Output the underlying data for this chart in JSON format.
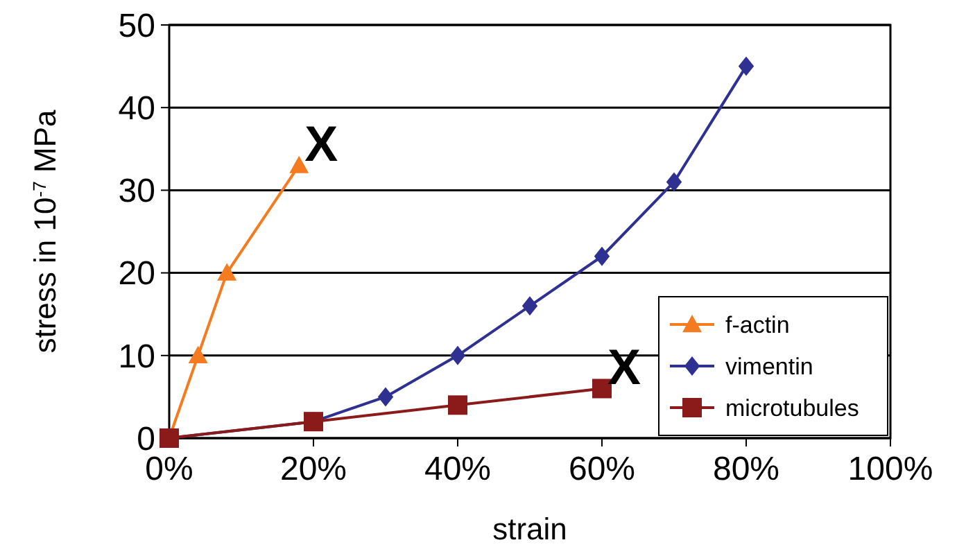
{
  "chart_data": {
    "type": "line",
    "xlabel": "strain",
    "ylabel": "stress in 10$^{-7}$ MPa",
    "xlim": [
      0,
      100
    ],
    "xticks": [
      {
        "value": 0,
        "label": "0%"
      },
      {
        "value": 20,
        "label": "20%"
      },
      {
        "value": 40,
        "label": "40%"
      },
      {
        "value": 60,
        "label": "60%"
      },
      {
        "value": 80,
        "label": "80%"
      },
      {
        "value": 100,
        "label": "100%"
      }
    ],
    "ylim": [
      0,
      50
    ],
    "yticks": [
      0,
      10,
      20,
      30,
      40,
      50
    ],
    "grid": "y",
    "legend": "bottom right",
    "series": [
      {
        "name": "f-actin",
        "color": "#f47b20",
        "marker": "triangle",
        "x": [
          0,
          4,
          8,
          18
        ],
        "values": [
          0,
          10,
          20,
          33
        ]
      },
      {
        "name": "vimentin",
        "color": "#2e3192",
        "marker": "diamond",
        "x": [
          0,
          20,
          30,
          40,
          50,
          60,
          70,
          80
        ],
        "values": [
          0,
          2,
          5,
          10,
          16,
          22,
          31,
          45
        ]
      },
      {
        "name": "microtubules",
        "color": "#8b1a1a",
        "marker": "square",
        "x": [
          0,
          20,
          40,
          60
        ],
        "values": [
          0,
          2,
          4,
          6
        ]
      }
    ],
    "annotations": [
      {
        "text": "X",
        "x": 18,
        "y": 33
      },
      {
        "text": "X",
        "x": 60,
        "y": 6
      }
    ]
  }
}
